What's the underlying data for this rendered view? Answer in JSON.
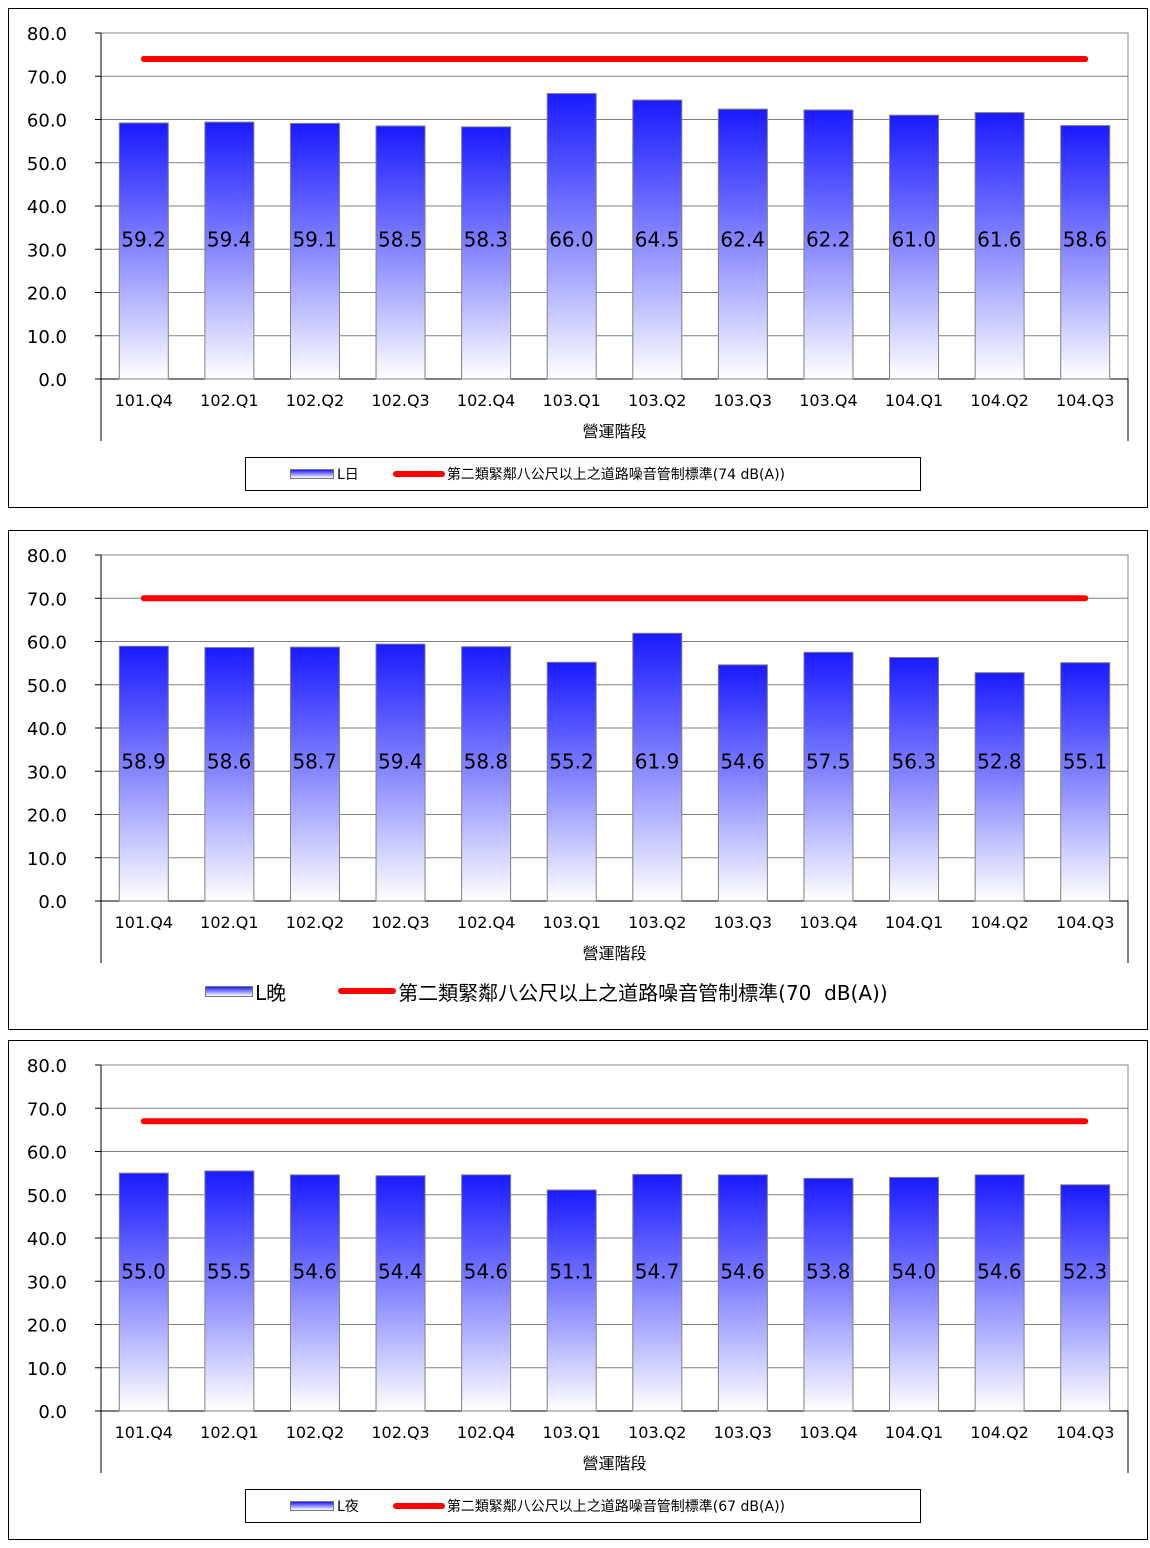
{
  "charts": [
    {
      "xlabel": "營運階段",
      "legend": {
        "bar_label": "L日",
        "line_label": "第二類緊鄰八公尺以上之道路噪音管制標準(74 dB(A))"
      },
      "colors": {
        "line": "#ff0000",
        "bar_top": "#1a1aff",
        "bar_bottom": "#ffffff"
      }
    },
    {
      "xlabel": "營運階段",
      "legend": {
        "bar_label": "L晚",
        "line_label": "第二類緊鄰八公尺以上之道路噪音管制標準(70  dB(A))"
      },
      "colors": {
        "line": "#ff0000",
        "bar_top": "#1a1aff",
        "bar_bottom": "#ffffff"
      }
    },
    {
      "xlabel": "營運階段",
      "legend": {
        "bar_label": "L夜",
        "line_label": "第二類緊鄰八公尺以上之道路噪音管制標準(67 dB(A))"
      },
      "colors": {
        "line": "#ff0000",
        "bar_top": "#1a1aff",
        "bar_bottom": "#ffffff"
      }
    }
  ],
  "chart_data": [
    {
      "type": "bar",
      "categories": [
        "101.Q4",
        "102.Q1",
        "102.Q2",
        "102.Q3",
        "102.Q4",
        "103.Q1",
        "103.Q2",
        "103.Q3",
        "103.Q4",
        "104.Q1",
        "104.Q2",
        "104.Q3"
      ],
      "series": [
        {
          "name": "L日",
          "type": "bar",
          "values": [
            59.2,
            59.4,
            59.1,
            58.5,
            58.3,
            66.0,
            64.5,
            62.4,
            62.2,
            61.0,
            61.6,
            58.6
          ]
        },
        {
          "name": "第二類緊鄰八公尺以上之道路噪音管制標準(74 dB(A))",
          "type": "line",
          "values": [
            74,
            74,
            74,
            74,
            74,
            74,
            74,
            74,
            74,
            74,
            74,
            74
          ]
        }
      ],
      "xlabel": "營運階段",
      "ylim": [
        0,
        80
      ],
      "yticks": [
        "0.0",
        "10.0",
        "20.0",
        "30.0",
        "40.0",
        "50.0",
        "60.0",
        "70.0",
        "80.0"
      ],
      "grid": true,
      "legend_position": "bottom"
    },
    {
      "type": "bar",
      "categories": [
        "101.Q4",
        "102.Q1",
        "102.Q2",
        "102.Q3",
        "102.Q4",
        "103.Q1",
        "103.Q2",
        "103.Q3",
        "103.Q4",
        "104.Q1",
        "104.Q2",
        "104.Q3"
      ],
      "series": [
        {
          "name": "L晚",
          "type": "bar",
          "values": [
            58.9,
            58.6,
            58.7,
            59.4,
            58.8,
            55.2,
            61.9,
            54.6,
            57.5,
            56.3,
            52.8,
            55.1
          ]
        },
        {
          "name": "第二類緊鄰八公尺以上之道路噪音管制標準(70  dB(A))",
          "type": "line",
          "values": [
            70,
            70,
            70,
            70,
            70,
            70,
            70,
            70,
            70,
            70,
            70,
            70
          ]
        }
      ],
      "xlabel": "營運階段",
      "ylim": [
        0,
        80
      ],
      "yticks": [
        "0.0",
        "10.0",
        "20.0",
        "30.0",
        "40.0",
        "50.0",
        "60.0",
        "70.0",
        "80.0"
      ],
      "grid": true,
      "legend_position": "bottom"
    },
    {
      "type": "bar",
      "categories": [
        "101.Q4",
        "102.Q1",
        "102.Q2",
        "102.Q3",
        "102.Q4",
        "103.Q1",
        "103.Q2",
        "103.Q3",
        "103.Q4",
        "104.Q1",
        "104.Q2",
        "104.Q3"
      ],
      "series": [
        {
          "name": "L夜",
          "type": "bar",
          "values": [
            55.0,
            55.5,
            54.6,
            54.4,
            54.6,
            51.1,
            54.7,
            54.6,
            53.8,
            54.0,
            54.6,
            52.3
          ]
        },
        {
          "name": "第二類緊鄰八公尺以上之道路噪音管制標準(67 dB(A))",
          "type": "line",
          "values": [
            67,
            67,
            67,
            67,
            67,
            67,
            67,
            67,
            67,
            67,
            67,
            67
          ]
        }
      ],
      "xlabel": "營運階段",
      "ylim": [
        0,
        80
      ],
      "yticks": [
        "0.0",
        "10.0",
        "20.0",
        "30.0",
        "40.0",
        "50.0",
        "60.0",
        "70.0",
        "80.0"
      ],
      "grid": true,
      "legend_position": "bottom"
    }
  ]
}
